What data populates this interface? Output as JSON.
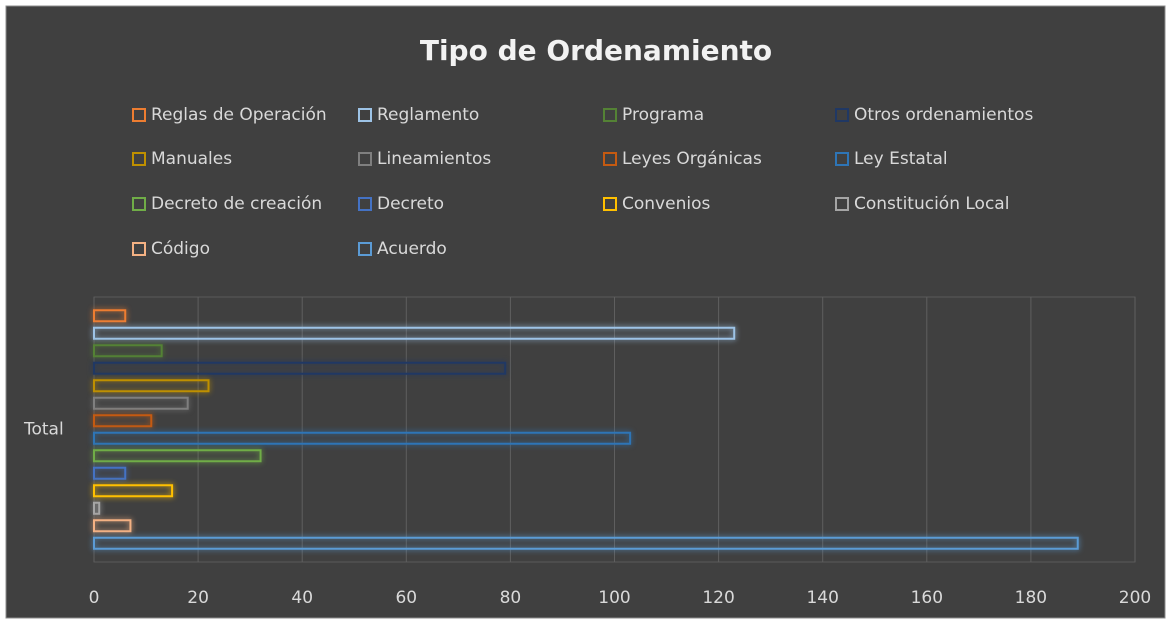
{
  "chart_data": {
    "type": "bar",
    "orientation": "horizontal",
    "title": "Tipo de Ordenamiento",
    "categories": [
      "Total"
    ],
    "series": [
      {
        "name": "Reglas de Operación",
        "color": "#ed7d31",
        "values": [
          6
        ]
      },
      {
        "name": "Reglamento",
        "color": "#9dc3e6",
        "values": [
          123
        ]
      },
      {
        "name": "Programa",
        "color": "#548235",
        "values": [
          13
        ]
      },
      {
        "name": "Otros ordenamientos",
        "color": "#203864",
        "values": [
          79
        ]
      },
      {
        "name": "Manuales",
        "color": "#bf9000",
        "values": [
          22
        ]
      },
      {
        "name": "Lineamientos",
        "color": "#7f7f7f",
        "values": [
          18
        ]
      },
      {
        "name": "Leyes Orgánicas",
        "color": "#c55a11",
        "values": [
          11
        ]
      },
      {
        "name": "Ley Estatal",
        "color": "#2e75b6",
        "values": [
          103
        ]
      },
      {
        "name": "Decreto de creación",
        "color": "#70ad47",
        "values": [
          32
        ]
      },
      {
        "name": "Decreto",
        "color": "#4472c4",
        "values": [
          6
        ]
      },
      {
        "name": "Convenios",
        "color": "#ffc000",
        "values": [
          15
        ]
      },
      {
        "name": "Constitución Local",
        "color": "#a5a5a5",
        "values": [
          1
        ]
      },
      {
        "name": "Código",
        "color": "#f4b183",
        "values": [
          7
        ]
      },
      {
        "name": "Acuerdo",
        "color": "#5b9bd5",
        "values": [
          189
        ]
      }
    ],
    "xlim": [
      0,
      200
    ],
    "xticks": [
      0,
      20,
      40,
      60,
      80,
      100,
      120,
      140,
      160,
      180,
      200
    ],
    "grid": true,
    "legend": "top"
  }
}
